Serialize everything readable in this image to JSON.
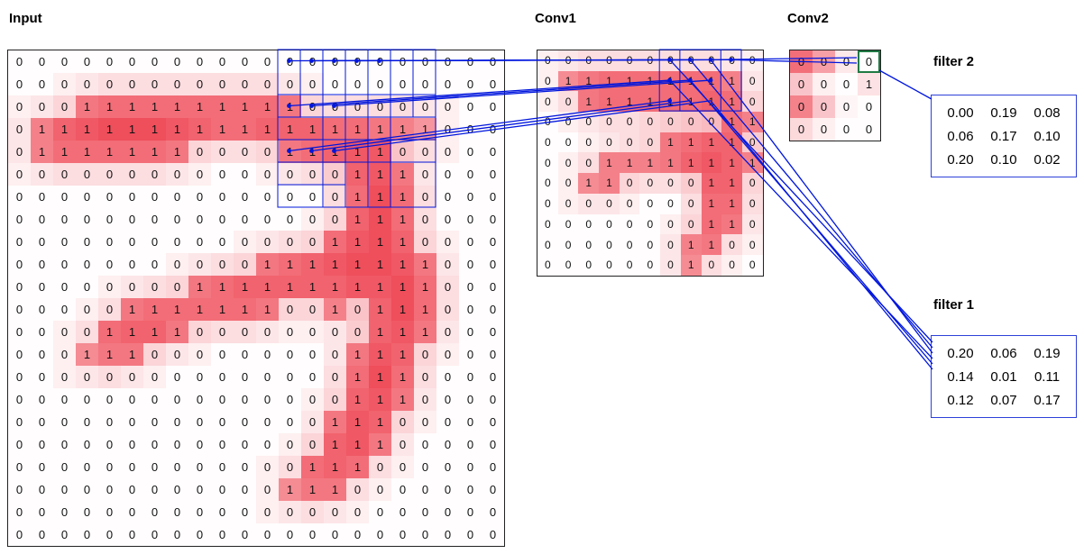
{
  "titles": {
    "input": "Input",
    "conv1": "Conv1",
    "conv2": "Conv2",
    "filter1": "filter 1",
    "filter2": "filter 2"
  },
  "colors": {
    "heat": "#ee3f4d",
    "accent_blue": "#0016dd",
    "highlight_green": "#1f7a44",
    "grid_border": "#222222"
  },
  "input": {
    "rows": 22,
    "cols": 22,
    "values": [
      [
        0,
        0,
        0,
        0,
        0,
        0,
        0,
        0,
        0,
        0,
        0,
        0,
        0,
        0,
        0,
        0,
        0,
        0,
        0,
        0,
        0,
        0
      ],
      [
        0,
        0,
        0,
        0,
        0,
        0,
        0,
        0,
        0,
        0,
        0,
        0,
        0,
        0,
        0,
        0,
        0,
        0,
        0,
        0,
        0,
        0
      ],
      [
        0,
        0,
        0,
        1,
        1,
        1,
        1,
        1,
        1,
        1,
        1,
        1,
        1,
        0,
        0,
        0,
        0,
        0,
        0,
        0,
        0,
        0
      ],
      [
        0,
        1,
        1,
        1,
        1,
        1,
        1,
        1,
        1,
        1,
        1,
        1,
        1,
        1,
        1,
        1,
        1,
        1,
        1,
        0,
        0,
        0
      ],
      [
        0,
        1,
        1,
        1,
        1,
        1,
        1,
        1,
        0,
        0,
        0,
        0,
        1,
        1,
        1,
        1,
        1,
        0,
        0,
        0,
        0,
        0
      ],
      [
        0,
        0,
        0,
        0,
        0,
        0,
        0,
        0,
        0,
        0,
        0,
        0,
        0,
        0,
        0,
        1,
        1,
        1,
        0,
        0,
        0,
        0
      ],
      [
        0,
        0,
        0,
        0,
        0,
        0,
        0,
        0,
        0,
        0,
        0,
        0,
        0,
        0,
        0,
        1,
        1,
        1,
        0,
        0,
        0,
        0
      ],
      [
        0,
        0,
        0,
        0,
        0,
        0,
        0,
        0,
        0,
        0,
        0,
        0,
        0,
        0,
        0,
        1,
        1,
        1,
        0,
        0,
        0,
        0
      ],
      [
        0,
        0,
        0,
        0,
        0,
        0,
        0,
        0,
        0,
        0,
        0,
        0,
        0,
        0,
        1,
        1,
        1,
        1,
        0,
        0,
        0,
        0
      ],
      [
        0,
        0,
        0,
        0,
        0,
        0,
        0,
        0,
        0,
        0,
        0,
        1,
        1,
        1,
        1,
        1,
        1,
        1,
        1,
        0,
        0,
        0
      ],
      [
        0,
        0,
        0,
        0,
        0,
        0,
        0,
        0,
        1,
        1,
        1,
        1,
        1,
        1,
        1,
        1,
        1,
        1,
        1,
        0,
        0,
        0
      ],
      [
        0,
        0,
        0,
        0,
        0,
        1,
        1,
        1,
        1,
        1,
        1,
        1,
        0,
        0,
        1,
        0,
        1,
        1,
        1,
        0,
        0,
        0
      ],
      [
        0,
        0,
        0,
        0,
        1,
        1,
        1,
        1,
        0,
        0,
        0,
        0,
        0,
        0,
        0,
        0,
        1,
        1,
        1,
        0,
        0,
        0
      ],
      [
        0,
        0,
        0,
        1,
        1,
        1,
        0,
        0,
        0,
        0,
        0,
        0,
        0,
        0,
        0,
        1,
        1,
        1,
        0,
        0,
        0,
        0
      ],
      [
        0,
        0,
        0,
        0,
        0,
        0,
        0,
        0,
        0,
        0,
        0,
        0,
        0,
        0,
        0,
        1,
        1,
        1,
        0,
        0,
        0,
        0
      ],
      [
        0,
        0,
        0,
        0,
        0,
        0,
        0,
        0,
        0,
        0,
        0,
        0,
        0,
        0,
        0,
        1,
        1,
        1,
        0,
        0,
        0,
        0
      ],
      [
        0,
        0,
        0,
        0,
        0,
        0,
        0,
        0,
        0,
        0,
        0,
        0,
        0,
        0,
        1,
        1,
        1,
        0,
        0,
        0,
        0,
        0
      ],
      [
        0,
        0,
        0,
        0,
        0,
        0,
        0,
        0,
        0,
        0,
        0,
        0,
        0,
        0,
        1,
        1,
        1,
        0,
        0,
        0,
        0,
        0
      ],
      [
        0,
        0,
        0,
        0,
        0,
        0,
        0,
        0,
        0,
        0,
        0,
        0,
        0,
        1,
        1,
        1,
        0,
        0,
        0,
        0,
        0,
        0
      ],
      [
        0,
        0,
        0,
        0,
        0,
        0,
        0,
        0,
        0,
        0,
        0,
        0,
        1,
        1,
        1,
        0,
        0,
        0,
        0,
        0,
        0,
        0
      ],
      [
        0,
        0,
        0,
        0,
        0,
        0,
        0,
        0,
        0,
        0,
        0,
        0,
        0,
        0,
        0,
        0,
        0,
        0,
        0,
        0,
        0,
        0
      ],
      [
        0,
        0,
        0,
        0,
        0,
        0,
        0,
        0,
        0,
        0,
        0,
        0,
        0,
        0,
        0,
        0,
        0,
        0,
        0,
        0,
        0,
        0
      ]
    ]
  },
  "conv1": {
    "rows": 11,
    "cols": 11,
    "values": [
      [
        0,
        0,
        0,
        0,
        0,
        0,
        0,
        0,
        0,
        0,
        0
      ],
      [
        0,
        1,
        1,
        1,
        1,
        1,
        1,
        1,
        1,
        1,
        0
      ],
      [
        0,
        0,
        1,
        1,
        1,
        1,
        1,
        1,
        1,
        1,
        0
      ],
      [
        0,
        0,
        0,
        0,
        0,
        0,
        0,
        0,
        0,
        1,
        1
      ],
      [
        0,
        0,
        0,
        0,
        0,
        0,
        1,
        1,
        1,
        1,
        0
      ],
      [
        0,
        0,
        0,
        1,
        1,
        1,
        1,
        1,
        1,
        1,
        1
      ],
      [
        0,
        0,
        1,
        1,
        0,
        0,
        0,
        0,
        1,
        1,
        0
      ],
      [
        0,
        0,
        0,
        0,
        0,
        0,
        0,
        0,
        1,
        1,
        0
      ],
      [
        0,
        0,
        0,
        0,
        0,
        0,
        0,
        0,
        1,
        1,
        0
      ],
      [
        0,
        0,
        0,
        0,
        0,
        0,
        0,
        1,
        1,
        0,
        0
      ],
      [
        0,
        0,
        0,
        0,
        0,
        0,
        0,
        1,
        0,
        0,
        0
      ]
    ]
  },
  "conv2": {
    "rows": 4,
    "cols": 4,
    "values": [
      [
        0,
        0,
        0,
        0
      ],
      [
        0,
        0,
        0,
        1
      ],
      [
        0,
        0,
        0,
        0
      ],
      [
        0,
        0,
        0,
        0
      ]
    ],
    "heat": [
      [
        0.75,
        0.5,
        0.12,
        0
      ],
      [
        0.3,
        0.08,
        0,
        0.15
      ],
      [
        0.65,
        0.3,
        0.05,
        0
      ],
      [
        0.2,
        0.08,
        0,
        0
      ]
    ],
    "highlight_cell": {
      "row": 1,
      "col": 4
    }
  },
  "filter2": {
    "values": [
      [
        "0.00",
        "0.19",
        "0.08"
      ],
      [
        "0.06",
        "0.17",
        "0.10"
      ],
      [
        "0.20",
        "0.10",
        "0.02"
      ]
    ]
  },
  "filter1": {
    "values": [
      [
        "0.20",
        "0.06",
        "0.19"
      ],
      [
        "0.14",
        "0.01",
        "0.11"
      ],
      [
        "0.12",
        "0.07",
        "0.17"
      ]
    ]
  }
}
